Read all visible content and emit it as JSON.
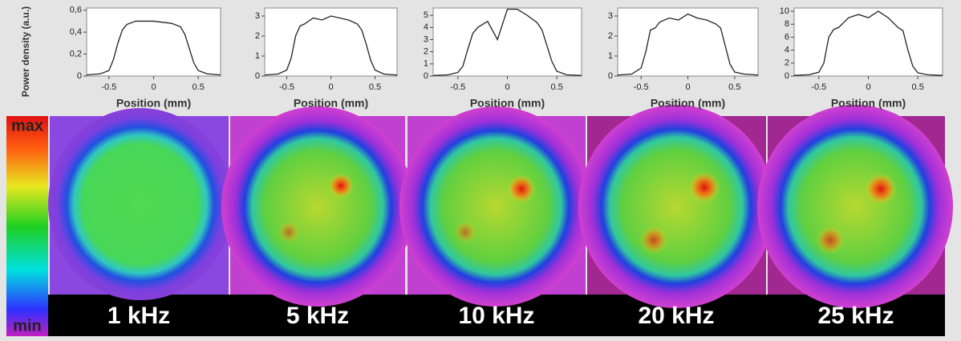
{
  "chart_data": [
    {
      "type": "line",
      "y_label": "Power density (a.u.)",
      "x_label": "Position (mm)",
      "x": [
        -0.75,
        -0.6,
        -0.5,
        -0.45,
        -0.4,
        -0.35,
        -0.3,
        -0.2,
        -0.1,
        0,
        0.1,
        0.2,
        0.3,
        0.35,
        0.4,
        0.45,
        0.5,
        0.6,
        0.75
      ],
      "values": [
        0.01,
        0.02,
        0.05,
        0.15,
        0.3,
        0.42,
        0.47,
        0.5,
        0.5,
        0.5,
        0.49,
        0.48,
        0.45,
        0.38,
        0.25,
        0.12,
        0.05,
        0.02,
        0.01
      ],
      "color": "#222222",
      "xlim": [
        -0.75,
        0.75
      ],
      "xticks": [
        -0.5,
        0,
        0.5
      ],
      "ylim": [
        0,
        0.62
      ],
      "yticks": [
        0,
        {
          "value": 0.2,
          "label": "0,2"
        },
        {
          "value": 0.4,
          "label": "0,4"
        },
        {
          "value": 0.6,
          "label": "0,6"
        }
      ]
    },
    {
      "type": "line",
      "x_label": "Position (mm)",
      "x": [
        -0.75,
        -0.6,
        -0.5,
        -0.45,
        -0.4,
        -0.35,
        -0.3,
        -0.2,
        -0.1,
        0,
        0.1,
        0.2,
        0.3,
        0.35,
        0.4,
        0.45,
        0.5,
        0.6,
        0.75
      ],
      "values": [
        0.05,
        0.1,
        0.3,
        0.9,
        2.0,
        2.5,
        2.6,
        2.9,
        2.8,
        3.0,
        2.9,
        2.8,
        2.6,
        2.3,
        1.6,
        0.8,
        0.3,
        0.1,
        0.05
      ],
      "color": "#222222",
      "xlim": [
        -0.75,
        0.75
      ],
      "xticks": [
        -0.5,
        0,
        0.5
      ],
      "ylim": [
        0,
        3.4
      ],
      "yticks": [
        0,
        1,
        2,
        3
      ]
    },
    {
      "type": "line",
      "x_label": "Position (mm)",
      "x": [
        -0.75,
        -0.6,
        -0.5,
        -0.45,
        -0.4,
        -0.35,
        -0.3,
        -0.2,
        -0.1,
        0,
        0.1,
        0.2,
        0.3,
        0.35,
        0.4,
        0.45,
        0.5,
        0.6,
        0.75
      ],
      "values": [
        0.05,
        0.1,
        0.3,
        0.8,
        2.2,
        3.5,
        4.0,
        4.5,
        3.0,
        5.5,
        5.5,
        5.0,
        4.4,
        3.8,
        2.5,
        1.2,
        0.4,
        0.1,
        0.05
      ],
      "color": "#222222",
      "xlim": [
        -0.75,
        0.75
      ],
      "xticks": [
        -0.5,
        0,
        0.5
      ],
      "ylim": [
        0,
        5.6
      ],
      "yticks": [
        0,
        1,
        2,
        3,
        4,
        5
      ]
    },
    {
      "type": "line",
      "x_label": "Position (mm)",
      "x": [
        -0.75,
        -0.6,
        -0.5,
        -0.45,
        -0.4,
        -0.35,
        -0.3,
        -0.2,
        -0.1,
        0,
        0.1,
        0.2,
        0.3,
        0.35,
        0.4,
        0.45,
        0.5,
        0.6,
        0.75
      ],
      "values": [
        0.05,
        0.1,
        0.4,
        1.2,
        2.3,
        2.4,
        2.7,
        2.9,
        2.8,
        3.1,
        2.9,
        2.8,
        2.6,
        2.4,
        1.5,
        0.6,
        0.2,
        0.1,
        0.05
      ],
      "color": "#222222",
      "xlim": [
        -0.75,
        0.75
      ],
      "xticks": [
        -0.5,
        0,
        0.5
      ],
      "ylim": [
        0,
        3.4
      ],
      "yticks": [
        0,
        1,
        2,
        3
      ]
    },
    {
      "type": "line",
      "x_label": "Position (mm)",
      "x": [
        -0.75,
        -0.6,
        -0.5,
        -0.45,
        -0.4,
        -0.35,
        -0.3,
        -0.2,
        -0.1,
        0,
        0.1,
        0.2,
        0.3,
        0.35,
        0.4,
        0.45,
        0.5,
        0.6,
        0.75
      ],
      "values": [
        0.1,
        0.2,
        0.6,
        2,
        6,
        7.2,
        7.5,
        9,
        9.5,
        9,
        10,
        9,
        7.5,
        7,
        4,
        1.5,
        0.5,
        0.2,
        0.1
      ],
      "color": "#222222",
      "xlim": [
        -0.75,
        0.75
      ],
      "xticks": [
        -0.5,
        0,
        0.5
      ],
      "ylim": [
        0,
        10.5
      ],
      "yticks": [
        0,
        2,
        4,
        6,
        8,
        10
      ]
    }
  ],
  "colorbar": {
    "max": "max",
    "min": "min"
  },
  "panels": [
    {
      "label": "1 kHz"
    },
    {
      "label": "5 kHz"
    },
    {
      "label": "10 kHz"
    },
    {
      "label": "20 kHz"
    },
    {
      "label": "25 kHz"
    }
  ]
}
